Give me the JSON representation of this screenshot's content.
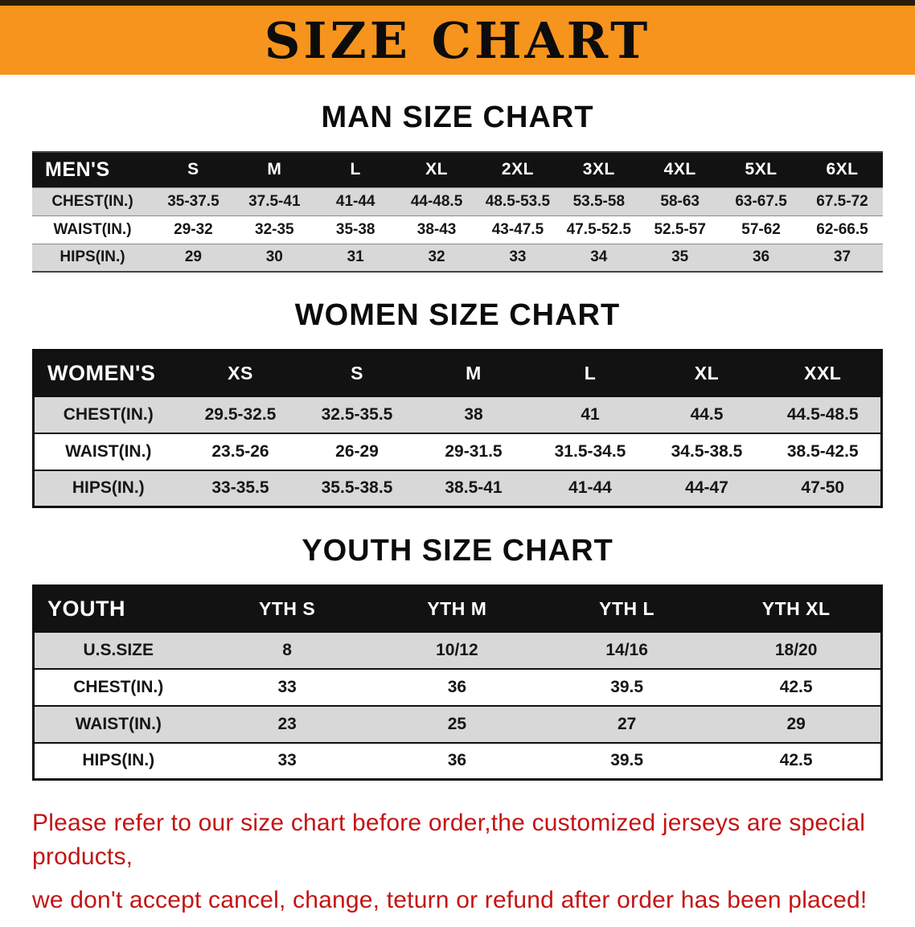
{
  "banner": {
    "title": "SIZE CHART",
    "bg_color": "#f7941d"
  },
  "sections": [
    {
      "heading": "MAN SIZE CHART",
      "table": {
        "header": [
          "MEN'S",
          "S",
          "M",
          "L",
          "XL",
          "2XL",
          "3XL",
          "4XL",
          "5XL",
          "6XL"
        ],
        "rows": [
          [
            "CHEST(IN.)",
            "35-37.5",
            "37.5-41",
            "41-44",
            "44-48.5",
            "48.5-53.5",
            "53.5-58",
            "58-63",
            "63-67.5",
            "67.5-72"
          ],
          [
            "WAIST(IN.)",
            "29-32",
            "32-35",
            "35-38",
            "38-43",
            "43-47.5",
            "47.5-52.5",
            "52.5-57",
            "57-62",
            "62-66.5"
          ],
          [
            "HIPS(IN.)",
            "29",
            "30",
            "31",
            "32",
            "33",
            "34",
            "35",
            "36",
            "37"
          ]
        ]
      }
    },
    {
      "heading": "WOMEN SIZE CHART",
      "table": {
        "header": [
          "WOMEN'S",
          "XS",
          "S",
          "M",
          "L",
          "XL",
          "XXL"
        ],
        "rows": [
          [
            "CHEST(IN.)",
            "29.5-32.5",
            "32.5-35.5",
            "38",
            "41",
            "44.5",
            "44.5-48.5"
          ],
          [
            "WAIST(IN.)",
            "23.5-26",
            "26-29",
            "29-31.5",
            "31.5-34.5",
            "34.5-38.5",
            "38.5-42.5"
          ],
          [
            "HIPS(IN.)",
            "33-35.5",
            "35.5-38.5",
            "38.5-41",
            "41-44",
            "44-47",
            "47-50"
          ]
        ]
      }
    },
    {
      "heading": "YOUTH SIZE CHART",
      "table": {
        "header": [
          "YOUTH",
          "YTH S",
          "YTH M",
          "YTH L",
          "YTH XL"
        ],
        "rows": [
          [
            "U.S.SIZE",
            "8",
            "10/12",
            "14/16",
            "18/20"
          ],
          [
            "CHEST(IN.)",
            "33",
            "36",
            "39.5",
            "42.5"
          ],
          [
            "WAIST(IN.)",
            "23",
            "25",
            "27",
            "29"
          ],
          [
            "HIPS(IN.)",
            "33",
            "36",
            "39.5",
            "42.5"
          ]
        ]
      }
    }
  ],
  "footer": {
    "line1": "Please refer to our size chart before order,the customized jerseys are special products,",
    "line2": "we don't accept cancel, change, teturn or refund after order has been placed!",
    "text_color": "#c41414"
  }
}
